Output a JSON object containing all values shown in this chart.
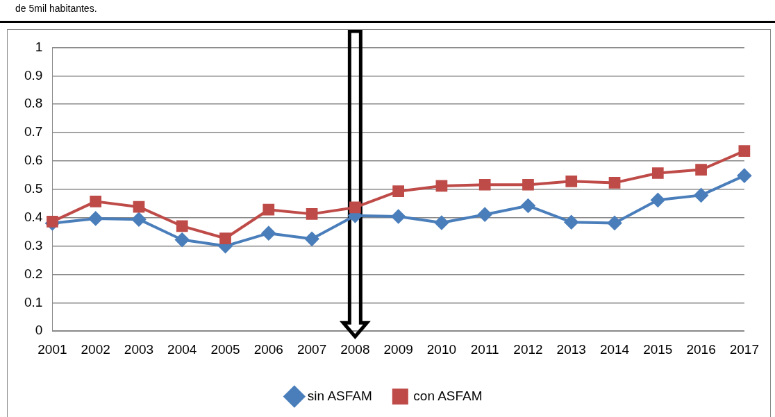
{
  "chart_data": {
    "type": "line",
    "categories": [
      "2001",
      "2002",
      "2003",
      "2004",
      "2005",
      "2006",
      "2007",
      "2008",
      "2009",
      "2010",
      "2011",
      "2012",
      "2013",
      "2014",
      "2015",
      "2016",
      "2017"
    ],
    "series": [
      {
        "name": "sin ASFAM",
        "color": "#4a7ebb",
        "marker": "diamond",
        "values": [
          0.38,
          0.397,
          0.394,
          0.322,
          0.3,
          0.345,
          0.325,
          0.407,
          0.404,
          0.382,
          0.411,
          0.442,
          0.384,
          0.381,
          0.462,
          0.479,
          0.548
        ]
      },
      {
        "name": "con ASFAM",
        "color": "#be4b48",
        "marker": "square",
        "values": [
          0.386,
          0.457,
          0.438,
          0.37,
          0.327,
          0.428,
          0.413,
          0.436,
          0.493,
          0.512,
          0.516,
          0.516,
          0.528,
          0.523,
          0.557,
          0.569,
          0.635
        ]
      }
    ],
    "ylim": [
      0,
      1
    ],
    "yticks": [
      0,
      0.1,
      0.2,
      0.3,
      0.4,
      0.5,
      0.6,
      0.7,
      0.8,
      0.9,
      1
    ],
    "grid": "y",
    "legend": "bottom",
    "annotations": [
      "de 5mil habitantes."
    ],
    "ref_lines": [
      {
        "axis": "x",
        "value": "2008",
        "color": "#000000"
      }
    ]
  }
}
